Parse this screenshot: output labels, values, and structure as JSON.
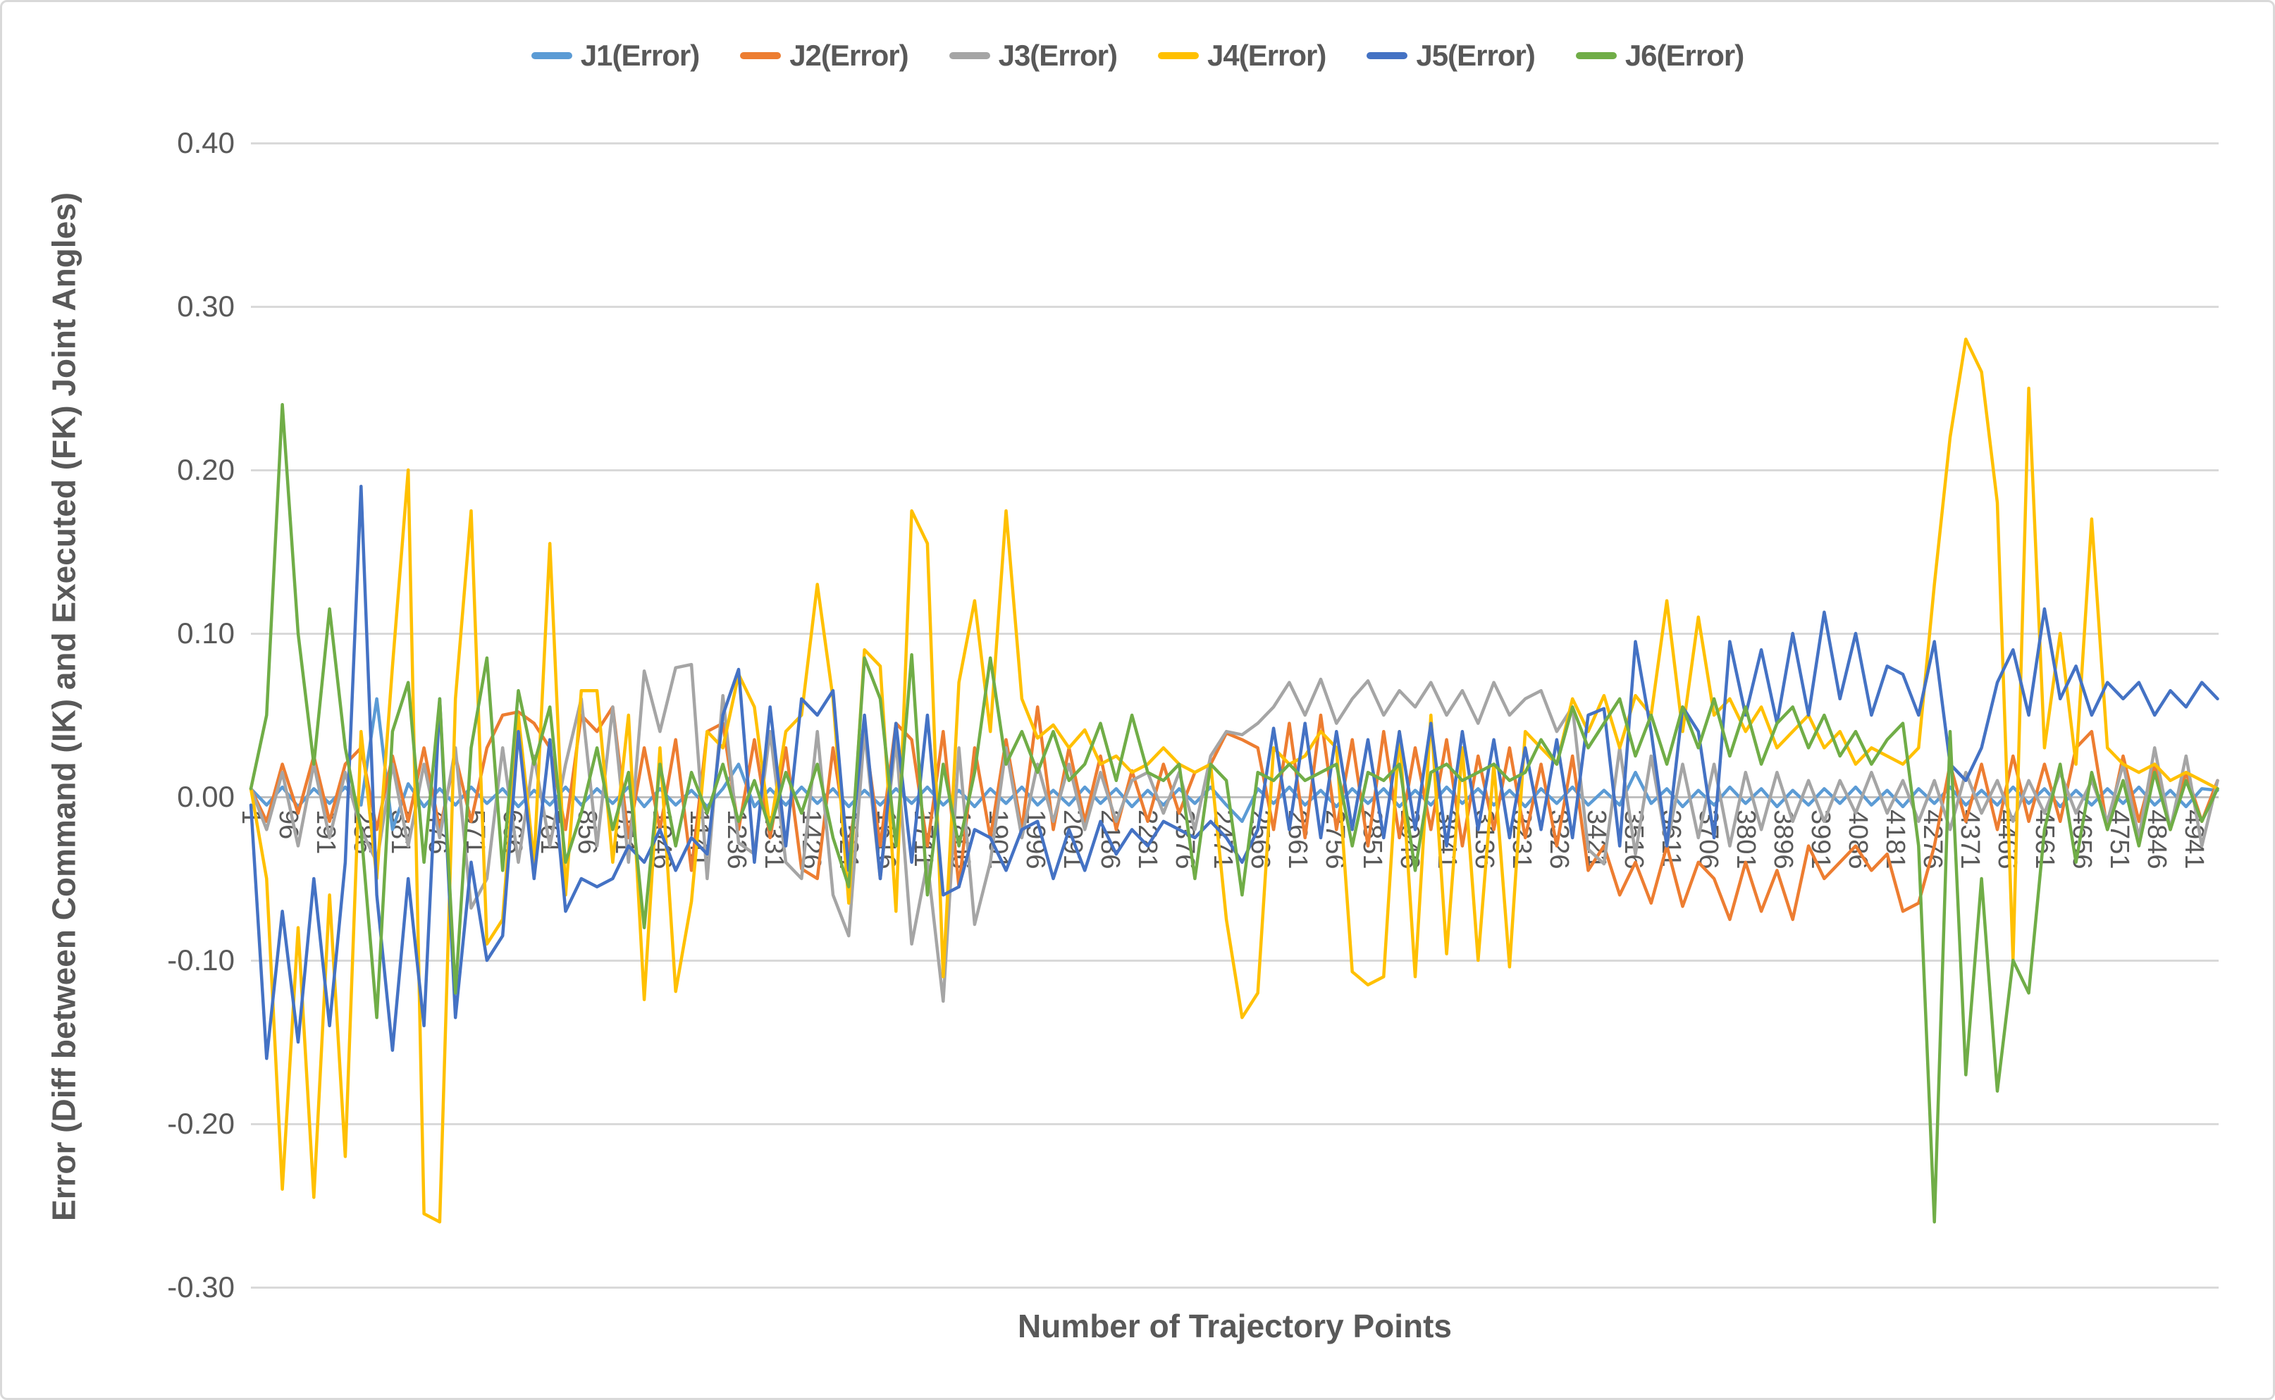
{
  "page": {
    "background": "#FFFFFF",
    "border_color": "#D9D9D9",
    "text_color": "#595959",
    "grid_color": "#D9D9D9"
  },
  "legend": {
    "position": "top",
    "items": [
      {
        "label": "J1(Error)",
        "color": "#5B9BD5"
      },
      {
        "label": "J2(Error)",
        "color": "#ED7D31"
      },
      {
        "label": "J3(Error)",
        "color": "#A5A5A5"
      },
      {
        "label": "J4(Error)",
        "color": "#FFC000"
      },
      {
        "label": "J5(Error)",
        "color": "#4472C4"
      },
      {
        "label": "J6(Error)",
        "color": "#70AD47"
      }
    ]
  },
  "y_axis": {
    "title": "Error (Diff between Command  (IK) and Executed (FK) Joint Angles)",
    "tick_labels": [
      "0.40",
      "0.30",
      "0.20",
      "0.10",
      "0.00",
      "-0.10",
      "-0.20",
      "-0.30"
    ]
  },
  "x_axis": {
    "title": "Number of Trajectory Points",
    "tick_labels": [
      "1",
      "96",
      "191",
      "286",
      "381",
      "476",
      "571",
      "666",
      "761",
      "856",
      "951",
      "1046",
      "1141",
      "1236",
      "1331",
      "1426",
      "1521",
      "1616",
      "1711",
      "1806",
      "1901",
      "1996",
      "2091",
      "2186",
      "2281",
      "2376",
      "2471",
      "2566",
      "2661",
      "2756",
      "2851",
      "2946",
      "3041",
      "3136",
      "3231",
      "3326",
      "3421",
      "3516",
      "3611",
      "3706",
      "3801",
      "3896",
      "3991",
      "4086",
      "4181",
      "4276",
      "4371",
      "4466",
      "4561",
      "4656",
      "4751",
      "4846",
      "4941"
    ]
  },
  "chart_data": {
    "type": "line",
    "title": "",
    "xlabel": "Number of Trajectory Points",
    "ylabel": "Error (Diff between Command (IK) and Executed (FK) Joint Angles)",
    "xlim": [
      1,
      5001
    ],
    "ylim": [
      -0.3,
      0.4
    ],
    "y_step": 0.1,
    "grid": true,
    "legend_position": "top",
    "x_tick_start": 1,
    "x_tick_step": 95,
    "sample_x_start": 1,
    "sample_x_step": 40,
    "series": [
      {
        "name": "J1(Error)",
        "color": "#5B9BD5",
        "values": [
          0.005,
          -0.005,
          0.006,
          -0.006,
          0.005,
          -0.004,
          0.006,
          -0.005,
          0.06,
          -0.02,
          0.008,
          -0.006,
          0.005,
          -0.005,
          0.006,
          -0.004,
          0.005,
          -0.006,
          0.004,
          -0.005,
          0.006,
          -0.005,
          0.005,
          -0.004,
          0.006,
          -0.006,
          0.005,
          -0.005,
          0.004,
          -0.006,
          0.005,
          0.02,
          -0.006,
          0.005,
          -0.005,
          0.006,
          -0.004,
          0.005,
          -0.006,
          0.004,
          -0.005,
          0.005,
          -0.004,
          0.006,
          -0.005,
          0.004,
          -0.006,
          0.005,
          -0.004,
          0.006,
          -0.005,
          0.004,
          -0.005,
          0.006,
          -0.004,
          0.005,
          -0.006,
          0.004,
          -0.005,
          0.005,
          -0.004,
          0.006,
          -0.005,
          -0.015,
          0.005,
          -0.004,
          0.006,
          -0.005,
          0.004,
          -0.006,
          0.005,
          -0.004,
          0.005,
          -0.006,
          0.004,
          -0.005,
          0.006,
          -0.004,
          0.005,
          -0.005,
          0.004,
          -0.006,
          0.005,
          -0.004,
          0.006,
          -0.005,
          0.004,
          -0.005,
          0.015,
          -0.004,
          0.005,
          -0.006,
          0.004,
          -0.005,
          0.006,
          -0.004,
          0.005,
          -0.006,
          0.004,
          -0.005,
          0.005,
          -0.004,
          0.006,
          -0.005,
          0.004,
          -0.006,
          0.005,
          -0.004,
          0.006,
          -0.005,
          0.004,
          -0.005,
          0.006,
          -0.004,
          0.005,
          -0.006,
          0.004,
          -0.005,
          0.005,
          -0.004,
          0.006,
          -0.005,
          0.004,
          -0.006,
          0.005,
          0.004
        ]
      },
      {
        "name": "J2(Error)",
        "color": "#ED7D31",
        "values": [
          0.005,
          -0.015,
          0.02,
          -0.01,
          0.025,
          -0.015,
          0.02,
          0.03,
          -0.02,
          0.025,
          -0.015,
          0.03,
          -0.02,
          0.025,
          -0.015,
          0.03,
          0.05,
          0.052,
          0.045,
          0.03,
          -0.02,
          0.05,
          0.04,
          0.055,
          -0.025,
          0.03,
          -0.02,
          0.035,
          -0.045,
          0.04,
          0.045,
          -0.02,
          0.035,
          -0.025,
          0.03,
          -0.044,
          -0.05,
          0.03,
          -0.035,
          0.04,
          -0.03,
          0.045,
          0.035,
          -0.03,
          0.04,
          -0.055,
          0.03,
          -0.025,
          0.035,
          -0.02,
          0.055,
          -0.02,
          0.03,
          -0.015,
          0.025,
          -0.02,
          0.016,
          -0.015,
          0.02,
          -0.01,
          0.015,
          0.02,
          0.039,
          0.035,
          0.03,
          -0.02,
          0.045,
          -0.025,
          0.05,
          -0.02,
          0.035,
          -0.03,
          0.04,
          -0.025,
          0.03,
          -0.02,
          0.035,
          -0.03,
          0.025,
          -0.02,
          0.03,
          -0.025,
          0.02,
          -0.03,
          0.025,
          -0.045,
          -0.03,
          -0.06,
          -0.04,
          -0.065,
          -0.03,
          -0.067,
          -0.04,
          -0.05,
          -0.075,
          -0.04,
          -0.07,
          -0.045,
          -0.075,
          -0.03,
          -0.05,
          -0.04,
          -0.03,
          -0.045,
          -0.035,
          -0.07,
          -0.065,
          -0.03,
          0.02,
          -0.015,
          0.02,
          -0.02,
          0.025,
          -0.015,
          0.02,
          -0.015,
          0.03,
          0.04,
          -0.02,
          0.025,
          -0.015,
          0.02,
          -0.02,
          0.015,
          -0.015,
          0.01
        ]
      },
      {
        "name": "J3(Error)",
        "color": "#A5A5A5",
        "values": [
          0.005,
          -0.02,
          0.015,
          -0.03,
          0.02,
          -0.025,
          0.015,
          -0.02,
          -0.04,
          0.02,
          -0.03,
          0.02,
          -0.025,
          0.03,
          -0.068,
          -0.05,
          0.03,
          -0.04,
          0.025,
          -0.03,
          0.02,
          0.06,
          -0.03,
          0.055,
          -0.04,
          0.077,
          0.04,
          0.079,
          0.081,
          -0.05,
          0.062,
          -0.028,
          -0.035,
          0.04,
          -0.04,
          -0.05,
          0.04,
          -0.06,
          -0.085,
          0.04,
          -0.05,
          0.035,
          -0.09,
          -0.04,
          -0.125,
          0.03,
          -0.078,
          -0.04,
          0.03,
          -0.025,
          0.02,
          -0.015,
          0.02,
          -0.02,
          0.015,
          -0.015,
          0.01,
          0.015,
          -0.01,
          0.015,
          -0.02,
          0.025,
          0.04,
          0.038,
          0.045,
          0.055,
          0.07,
          0.05,
          0.072,
          0.045,
          0.06,
          0.071,
          0.05,
          0.065,
          0.055,
          0.07,
          0.05,
          0.065,
          0.045,
          0.07,
          0.05,
          0.06,
          0.065,
          0.04,
          0.055,
          -0.032,
          -0.041,
          0.03,
          -0.035,
          0.025,
          -0.03,
          0.02,
          -0.025,
          0.02,
          -0.03,
          0.015,
          -0.02,
          0.015,
          -0.015,
          0.01,
          -0.015,
          0.01,
          -0.01,
          0.015,
          -0.01,
          0.01,
          -0.015,
          0.01,
          -0.02,
          0.015,
          -0.01,
          0.01,
          -0.015,
          0.01,
          -0.01,
          0.015,
          -0.01,
          0.01,
          -0.015,
          0.02,
          -0.025,
          0.03,
          -0.02,
          0.025,
          -0.03,
          0.01
        ]
      },
      {
        "name": "J4(Error)",
        "color": "#FFC000",
        "values": [
          0.005,
          -0.05,
          -0.24,
          -0.08,
          -0.245,
          -0.06,
          -0.22,
          0.04,
          -0.05,
          0.08,
          0.2,
          -0.255,
          -0.26,
          0.06,
          0.175,
          -0.09,
          -0.075,
          0.05,
          -0.04,
          0.155,
          -0.06,
          0.065,
          0.065,
          -0.04,
          0.05,
          -0.124,
          0.03,
          -0.119,
          -0.064,
          0.04,
          0.03,
          0.075,
          0.055,
          -0.02,
          0.04,
          0.05,
          0.13,
          0.06,
          -0.065,
          0.09,
          0.08,
          -0.07,
          0.175,
          0.155,
          -0.11,
          0.07,
          0.12,
          0.04,
          0.175,
          0.06,
          0.036,
          0.044,
          0.03,
          0.041,
          0.02,
          0.025,
          0.015,
          0.02,
          0.03,
          0.02,
          0.015,
          0.02,
          -0.075,
          -0.135,
          -0.12,
          0.03,
          0.02,
          0.025,
          0.04,
          0.03,
          -0.107,
          -0.115,
          -0.11,
          0.04,
          -0.11,
          0.05,
          -0.096,
          0.03,
          -0.1,
          0.02,
          -0.104,
          0.04,
          0.03,
          0.02,
          0.06,
          0.04,
          0.062,
          0.03,
          0.062,
          0.05,
          0.12,
          0.04,
          0.11,
          0.05,
          0.06,
          0.04,
          0.055,
          0.03,
          0.04,
          0.05,
          0.03,
          0.04,
          0.02,
          0.03,
          0.025,
          0.02,
          0.03,
          0.13,
          0.22,
          0.28,
          0.26,
          0.18,
          -0.1,
          0.25,
          0.03,
          0.1,
          0.02,
          0.17,
          0.03,
          0.02,
          0.015,
          0.02,
          0.01,
          0.015,
          0.01,
          0.005
        ]
      },
      {
        "name": "J5(Error)",
        "color": "#4472C4",
        "values": [
          -0.005,
          -0.16,
          -0.07,
          -0.15,
          -0.05,
          -0.14,
          -0.04,
          0.19,
          -0.06,
          -0.155,
          -0.05,
          -0.14,
          0.06,
          -0.135,
          -0.04,
          -0.1,
          -0.085,
          0.04,
          -0.05,
          0.035,
          -0.07,
          -0.05,
          -0.055,
          -0.05,
          -0.03,
          -0.04,
          -0.02,
          -0.045,
          -0.025,
          -0.035,
          0.05,
          0.078,
          -0.04,
          0.055,
          -0.03,
          0.06,
          0.05,
          0.065,
          -0.045,
          0.05,
          -0.05,
          0.045,
          -0.04,
          0.05,
          -0.06,
          -0.055,
          -0.02,
          -0.025,
          -0.045,
          -0.02,
          -0.015,
          -0.05,
          -0.02,
          -0.045,
          -0.015,
          -0.035,
          -0.02,
          -0.03,
          -0.015,
          -0.02,
          -0.025,
          -0.015,
          -0.025,
          -0.04,
          -0.02,
          0.042,
          -0.02,
          0.045,
          -0.025,
          0.04,
          -0.02,
          0.035,
          -0.025,
          0.04,
          -0.02,
          0.045,
          -0.03,
          0.04,
          -0.02,
          0.035,
          -0.025,
          0.03,
          -0.02,
          0.035,
          -0.025,
          0.05,
          0.054,
          -0.03,
          0.095,
          0.04,
          -0.03,
          0.055,
          0.04,
          -0.025,
          0.095,
          0.05,
          0.09,
          0.045,
          0.1,
          0.05,
          0.113,
          0.06,
          0.1,
          0.05,
          0.08,
          0.075,
          0.05,
          0.095,
          0.02,
          0.01,
          0.03,
          0.07,
          0.09,
          0.05,
          0.115,
          0.06,
          0.08,
          0.05,
          0.07,
          0.06,
          0.07,
          0.05,
          0.065,
          0.055,
          0.07,
          0.06
        ]
      },
      {
        "name": "J6(Error)",
        "color": "#70AD47",
        "values": [
          0.005,
          0.05,
          0.24,
          0.1,
          0.02,
          0.115,
          0.03,
          -0.02,
          -0.135,
          0.04,
          0.07,
          -0.04,
          0.06,
          -0.12,
          0.03,
          0.085,
          -0.045,
          0.065,
          0.02,
          0.055,
          -0.04,
          -0.01,
          0.03,
          -0.02,
          0.015,
          -0.08,
          0.02,
          -0.03,
          0.015,
          -0.01,
          0.02,
          -0.015,
          0.01,
          -0.02,
          0.015,
          -0.01,
          0.02,
          -0.025,
          -0.055,
          0.085,
          0.06,
          -0.03,
          0.087,
          -0.06,
          0.02,
          -0.03,
          0.015,
          0.085,
          0.02,
          0.04,
          0.015,
          0.04,
          0.01,
          0.02,
          0.045,
          0.01,
          0.05,
          0.015,
          0.01,
          0.02,
          -0.05,
          0.02,
          0.01,
          -0.06,
          0.015,
          0.01,
          0.02,
          0.01,
          0.015,
          0.02,
          -0.03,
          0.015,
          0.01,
          0.02,
          -0.045,
          0.015,
          0.02,
          0.01,
          0.015,
          0.02,
          0.01,
          0.015,
          0.035,
          0.02,
          0.055,
          0.03,
          0.045,
          0.06,
          0.025,
          0.05,
          0.02,
          0.055,
          0.03,
          0.06,
          0.025,
          0.055,
          0.02,
          0.045,
          0.055,
          0.03,
          0.05,
          0.025,
          0.04,
          0.02,
          0.035,
          0.045,
          -0.03,
          -0.26,
          0.04,
          -0.17,
          -0.05,
          -0.18,
          -0.1,
          -0.12,
          -0.02,
          0.02,
          -0.04,
          0.015,
          -0.02,
          0.01,
          -0.03,
          0.015,
          -0.02,
          0.01,
          -0.015,
          0.005
        ]
      }
    ]
  }
}
